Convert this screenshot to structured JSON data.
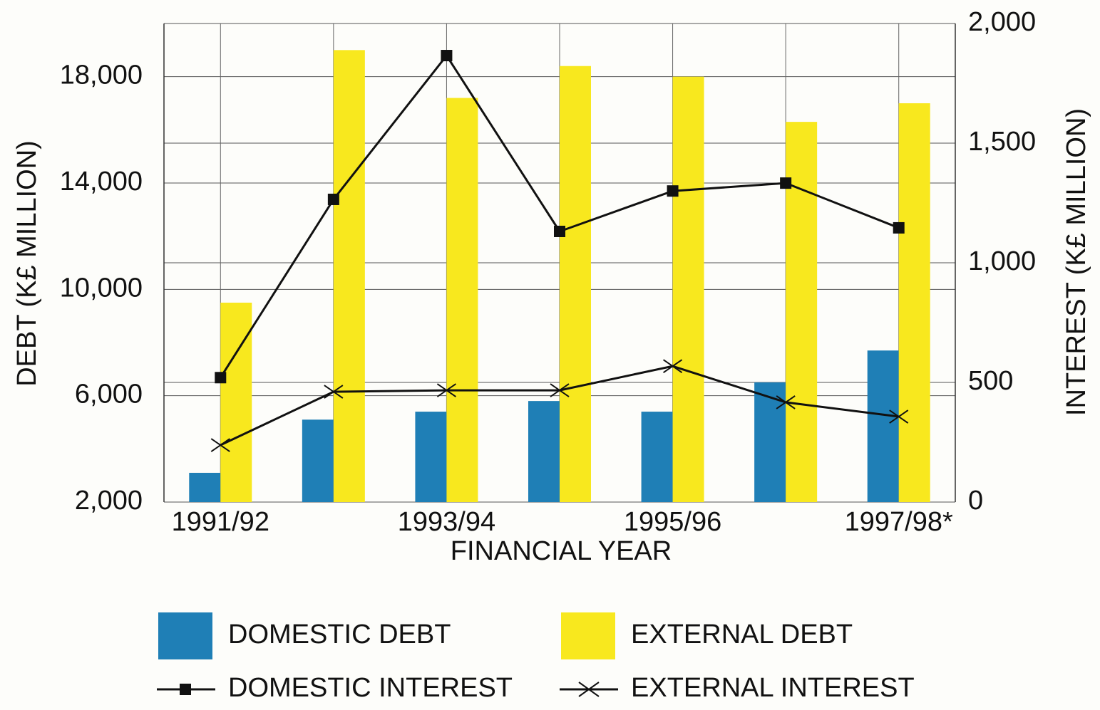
{
  "chart_data": {
    "type": "bar",
    "categories": [
      "1991/92",
      null,
      "1993/94",
      null,
      "1995/96",
      null,
      "1997/98*"
    ],
    "x_label": "FINANCIAL YEAR",
    "y_label": "DEBT (K£ MILLION)",
    "y2_label": "INTEREST (K£ MILLION)",
    "ylim": [
      2000,
      20000
    ],
    "yticks": [
      {
        "value": 2000,
        "label": "2,000"
      },
      {
        "value": 6000,
        "label": "6,000"
      },
      {
        "value": 10000,
        "label": "10,000"
      },
      {
        "value": 14000,
        "label": "14,000"
      },
      {
        "value": 18000,
        "label": "18,000"
      }
    ],
    "y2lim": [
      0,
      2000
    ],
    "y2ticks": [
      0,
      500,
      {
        "value": 1000,
        "label": "1,000"
      },
      {
        "value": 1500,
        "label": "1,500"
      },
      {
        "value": 2000,
        "label": "2,000"
      }
    ],
    "grid": true,
    "series": [
      {
        "name": "DOMESTIC DEBT",
        "type": "bar",
        "color": "#1f7fb6",
        "values": [
          3100,
          5100,
          5400,
          5800,
          5400,
          6500,
          7700
        ]
      },
      {
        "name": "EXTERNAL DEBT",
        "type": "bar",
        "color": "#f8e81e",
        "values": [
          9500,
          19000,
          17200,
          18400,
          18000,
          16300,
          17000
        ]
      },
      {
        "name": "DOMESTIC INTEREST",
        "type": "line",
        "axis": "y2",
        "marker": "square",
        "color": "#111111",
        "values": [
          520,
          1265,
          1866,
          1131,
          1300,
          1333,
          1146
        ]
      },
      {
        "name": "EXTERNAL INTEREST",
        "type": "line",
        "axis": "y2",
        "marker": "x",
        "color": "#111111",
        "values": [
          238,
          461,
          467,
          467,
          568,
          417,
          357
        ]
      }
    ]
  }
}
